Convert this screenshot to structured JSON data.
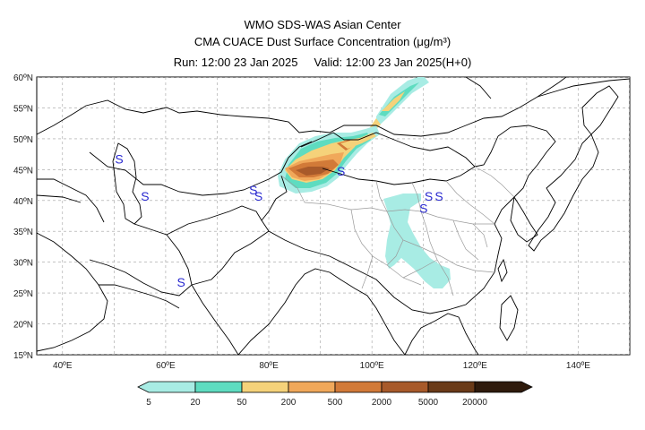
{
  "title": {
    "line1": "WMO SDS-WAS Asian Center",
    "line2": "CMA CUACE Dust Surface Concentration (μg/m³)",
    "line3": "Run: 12:00 23 Jan 2025     Valid: 12:00 23 Jan 2025(H+0)"
  },
  "map": {
    "lat_labels": [
      "60ºN",
      "55ºN",
      "50ºN",
      "45ºN",
      "40ºN",
      "35ºN",
      "30ºN",
      "25ºN",
      "20ºN",
      "15ºN"
    ],
    "lon_labels": [
      "40ºE",
      "60ºE",
      "80ºE",
      "100ºE",
      "120ºE",
      "140ºE"
    ],
    "station_markers": [
      {
        "symbol": "S",
        "lon": 51,
        "lat": 46
      },
      {
        "symbol": "S",
        "lon": 56,
        "lat": 40
      },
      {
        "symbol": "S",
        "lon": 77,
        "lat": 41
      },
      {
        "symbol": "S",
        "lon": 78,
        "lat": 40
      },
      {
        "symbol": "S",
        "lon": 94,
        "lat": 44
      },
      {
        "symbol": "S",
        "lon": 111,
        "lat": 40
      },
      {
        "symbol": "S",
        "lon": 113,
        "lat": 40
      },
      {
        "symbol": "S",
        "lon": 110,
        "lat": 38
      },
      {
        "symbol": "S",
        "lon": 63,
        "lat": 26
      }
    ]
  },
  "colorbar": {
    "labels": [
      "5",
      "20",
      "50",
      "200",
      "500",
      "2000",
      "5000",
      "20000"
    ],
    "colors": [
      "#a8ece4",
      "#5edcc0",
      "#f5d27a",
      "#f0a85a",
      "#d27a38",
      "#a85a2a",
      "#6a3a18",
      "#2e1a0c"
    ]
  },
  "colors": {
    "grid": "#a0a0a0",
    "coast": "#000000",
    "china_province": "#9a9a9a",
    "station_marker": "#2a2ad0"
  }
}
